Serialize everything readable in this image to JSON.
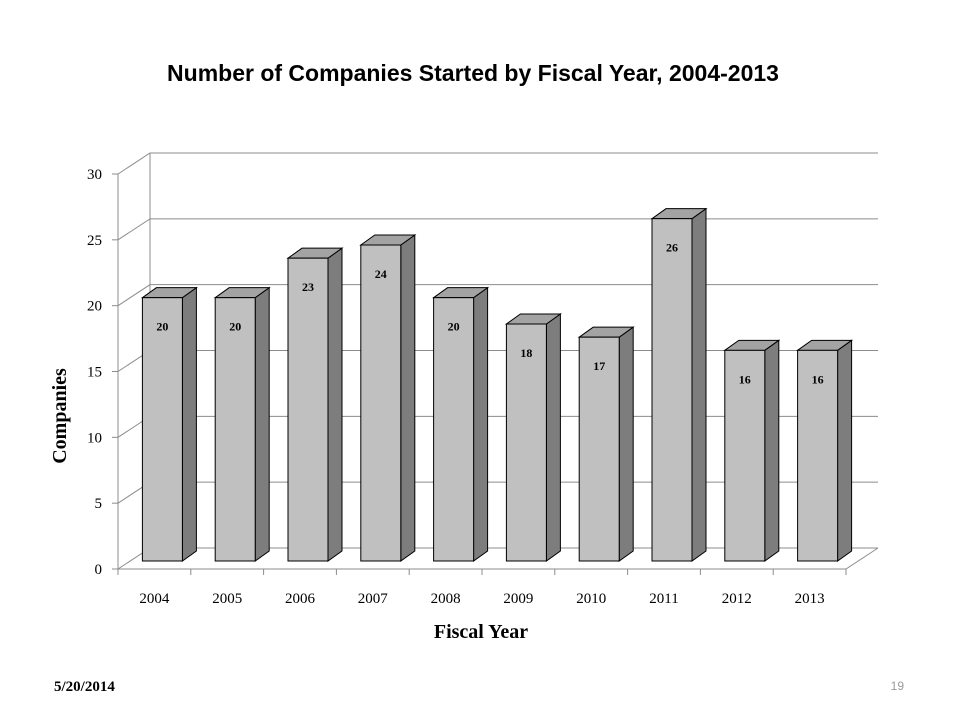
{
  "slide": {
    "date": "5/20/2014",
    "page_number": "19"
  },
  "colors": {
    "bar_front": "#c0c0c0",
    "bar_side": "#7d7d7d",
    "bar_top": "#a3a3a3",
    "grid": "#8c8c8c",
    "outline": "#000000"
  },
  "chart_data": {
    "type": "bar",
    "title": "Number of Companies Started by Fiscal Year, 2004-2013",
    "xlabel": "Fiscal Year",
    "ylabel": "Companies",
    "categories": [
      "2004",
      "2005",
      "2006",
      "2007",
      "2008",
      "2009",
      "2010",
      "2011",
      "2012",
      "2013"
    ],
    "values": [
      20,
      20,
      23,
      24,
      20,
      18,
      17,
      26,
      16,
      16
    ],
    "data_labels": [
      "20",
      "20",
      "23",
      "24",
      "20",
      "18",
      "17",
      "26",
      "16",
      "16"
    ],
    "ylim": [
      0,
      30
    ],
    "y_ticks": [
      "0",
      "5",
      "10",
      "15",
      "20",
      "25",
      "30"
    ],
    "grid": true,
    "legend": "none",
    "style": "3d-clustered-column"
  }
}
